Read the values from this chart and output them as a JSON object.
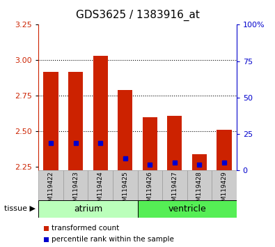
{
  "title": "GDS3625 / 1383916_at",
  "samples": [
    "GSM119422",
    "GSM119423",
    "GSM119424",
    "GSM119425",
    "GSM119426",
    "GSM119427",
    "GSM119428",
    "GSM119429"
  ],
  "red_top": [
    2.92,
    2.92,
    3.03,
    2.79,
    2.6,
    2.61,
    2.34,
    2.51
  ],
  "blue_val": [
    2.42,
    2.42,
    2.42,
    2.31,
    2.265,
    2.28,
    2.265,
    2.28
  ],
  "baseline": 2.225,
  "ylim_left": [
    2.225,
    3.25
  ],
  "ylim_right": [
    0,
    100
  ],
  "yticks_left": [
    2.25,
    2.5,
    2.75,
    3.0,
    3.25
  ],
  "yticks_right": [
    0,
    25,
    50,
    75,
    100
  ],
  "ytick_labels_right": [
    "0",
    "25",
    "50",
    "75",
    "100%"
  ],
  "red_color": "#cc2200",
  "blue_color": "#0000cc",
  "bar_width": 0.6,
  "tissue_groups": {
    "atrium": [
      0,
      1,
      2,
      3
    ],
    "ventricle": [
      4,
      5,
      6,
      7
    ]
  },
  "tissue_color_atrium": "#bbffbb",
  "tissue_color_ventricle": "#55ee55",
  "legend_items": [
    "transformed count",
    "percentile rank within the sample"
  ],
  "legend_colors": [
    "#cc2200",
    "#0000cc"
  ]
}
